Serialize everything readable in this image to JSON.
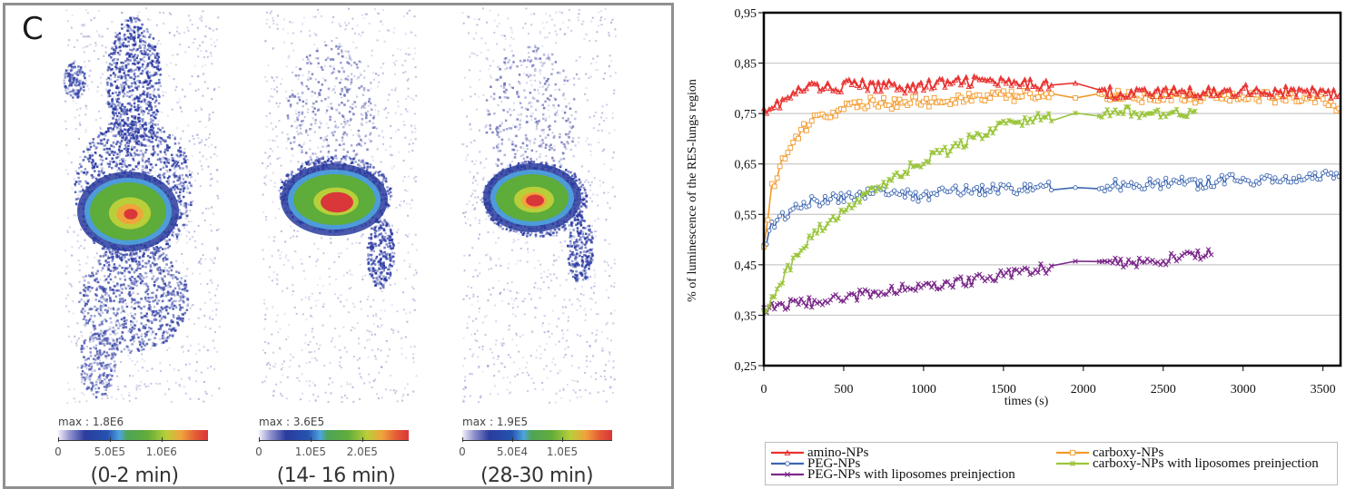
{
  "imaging": {
    "panel_letter": "C",
    "panels": [
      {
        "max_label": "max : 1.8E6",
        "scale_ticks": [
          "0",
          "5.0E5",
          "1.0E6"
        ],
        "time_label": "(0-2 min)",
        "max_value": 1800000,
        "tick_values": [
          0,
          500000,
          1000000
        ],
        "scale_max": 1450000
      },
      {
        "max_label": "max : 3.6E5",
        "scale_ticks": [
          "0",
          "1.0E5",
          "2.0E5"
        ],
        "time_label": "(14- 16 min)",
        "max_value": 360000,
        "tick_values": [
          0,
          100000,
          200000
        ],
        "scale_max": 290000
      },
      {
        "max_label": "max : 1.9E5",
        "scale_ticks": [
          "0",
          "5.0E4",
          "1.0E5"
        ],
        "time_label": "(28-30 min)",
        "max_value": 190000,
        "tick_values": [
          0,
          50000,
          100000
        ],
        "scale_max": 150000
      }
    ],
    "colormap": [
      "#f2f0fb",
      "#2a3c9d",
      "#4fa4df",
      "#62ad3a",
      "#b8cf3a",
      "#f0a43c",
      "#d9373a"
    ]
  },
  "chart_data": {
    "type": "line",
    "title": "",
    "xlabel": "times (s)",
    "ylabel": "% of luminescence of the RES-lungs region",
    "xlim": [
      0,
      3610
    ],
    "ylim": [
      0.25,
      0.95
    ],
    "x_ticks": [
      0,
      500,
      1000,
      1500,
      2000,
      2500,
      3000,
      3500
    ],
    "x_tick_labels": [
      "0",
      "500",
      "1000",
      "1500",
      "2000",
      "2500",
      "3000",
      "3500"
    ],
    "y_ticks": [
      0.25,
      0.35,
      0.45,
      0.55,
      0.65,
      0.75,
      0.85,
      0.95
    ],
    "y_tick_labels": [
      "0,25",
      "0,35",
      "0,45",
      "0,55",
      "0,65",
      "0,75",
      "0,85",
      "0,95"
    ],
    "grid": "horizontal",
    "legend_position": "bottom",
    "series": [
      {
        "name": "amino-NPs",
        "color": "#e8312f",
        "marker": "triangle",
        "x": [
          0,
          100,
          200,
          300,
          400,
          500,
          600,
          700,
          800,
          900,
          1000,
          1100,
          1200,
          1300,
          1400,
          1500,
          1600,
          1700,
          1800,
          1950,
          2100,
          2200,
          2300,
          2400,
          2500,
          2600,
          2700,
          2800,
          2900,
          3000,
          3100,
          3200,
          3300,
          3400,
          3500,
          3600
        ],
        "y": [
          0.76,
          0.77,
          0.79,
          0.805,
          0.8,
          0.805,
          0.81,
          0.8,
          0.81,
          0.8,
          0.805,
          0.81,
          0.81,
          0.815,
          0.815,
          0.81,
          0.805,
          0.81,
          0.81,
          0.8,
          0.8,
          0.79,
          0.79,
          0.795,
          0.79,
          0.795,
          0.79,
          0.795,
          0.79,
          0.8,
          0.795,
          0.79,
          0.795,
          0.79,
          0.795,
          0.785
        ]
      },
      {
        "name": "carboxy-NPs",
        "color": "#f39a2d",
        "marker": "square",
        "x": [
          0,
          25,
          50,
          100,
          150,
          200,
          250,
          300,
          350,
          400,
          500,
          600,
          700,
          800,
          900,
          1000,
          1100,
          1200,
          1300,
          1400,
          1500,
          1600,
          1700,
          1800,
          1950,
          2100,
          2200,
          2300,
          2400,
          2500,
          2600,
          2700,
          2800,
          2900,
          3000,
          3100,
          3200,
          3300,
          3400,
          3500,
          3600
        ],
        "y": [
          0.485,
          0.55,
          0.6,
          0.64,
          0.675,
          0.7,
          0.72,
          0.735,
          0.745,
          0.75,
          0.76,
          0.765,
          0.775,
          0.77,
          0.775,
          0.77,
          0.775,
          0.78,
          0.78,
          0.78,
          0.785,
          0.785,
          0.785,
          0.79,
          0.775,
          0.78,
          0.785,
          0.785,
          0.78,
          0.785,
          0.78,
          0.78,
          0.785,
          0.78,
          0.785,
          0.785,
          0.78,
          0.78,
          0.78,
          0.78,
          0.76
        ]
      },
      {
        "name": "PEG-NPs",
        "color": "#3c66b0",
        "marker": "circle",
        "x": [
          0,
          50,
          100,
          150,
          200,
          300,
          400,
          500,
          600,
          700,
          800,
          900,
          1000,
          1100,
          1200,
          1300,
          1400,
          1500,
          1600,
          1700,
          1800,
          1950,
          2100,
          2200,
          2300,
          2400,
          2500,
          2600,
          2700,
          2800,
          2900,
          3000,
          3100,
          3200,
          3300,
          3400,
          3500,
          3600
        ],
        "y": [
          0.49,
          0.525,
          0.54,
          0.55,
          0.56,
          0.575,
          0.58,
          0.585,
          0.59,
          0.595,
          0.595,
          0.59,
          0.585,
          0.595,
          0.6,
          0.595,
          0.6,
          0.6,
          0.6,
          0.605,
          0.605,
          0.595,
          0.605,
          0.61,
          0.605,
          0.61,
          0.61,
          0.615,
          0.61,
          0.615,
          0.62,
          0.615,
          0.62,
          0.625,
          0.615,
          0.625,
          0.625,
          0.625
        ]
      },
      {
        "name": "PEG-NPs with liposomes preinjection",
        "color": "#7b2a8a",
        "marker": "x",
        "x": [
          0,
          100,
          200,
          300,
          400,
          500,
          600,
          700,
          800,
          900,
          1000,
          1100,
          1200,
          1300,
          1400,
          1500,
          1600,
          1700,
          1800,
          1950,
          2100,
          2200,
          2300,
          2400,
          2500,
          2600,
          2700,
          2800
        ],
        "y": [
          0.365,
          0.37,
          0.375,
          0.375,
          0.38,
          0.385,
          0.39,
          0.395,
          0.4,
          0.405,
          0.41,
          0.41,
          0.415,
          0.42,
          0.425,
          0.43,
          0.435,
          0.44,
          0.445,
          0.45,
          0.45,
          0.455,
          0.455,
          0.46,
          0.46,
          0.465,
          0.47,
          0.47
        ]
      },
      {
        "name": "carboxy-NPs with liposomes preinjection",
        "color": "#9bc53d",
        "marker": "asterisk",
        "x": [
          0,
          50,
          100,
          150,
          200,
          250,
          300,
          400,
          500,
          600,
          700,
          800,
          900,
          1000,
          1100,
          1200,
          1300,
          1400,
          1500,
          1600,
          1700,
          1800,
          1950,
          2100,
          2200,
          2300,
          2400,
          2500,
          2600,
          2700
        ],
        "y": [
          0.36,
          0.385,
          0.41,
          0.44,
          0.47,
          0.49,
          0.51,
          0.535,
          0.56,
          0.58,
          0.6,
          0.62,
          0.64,
          0.655,
          0.67,
          0.685,
          0.7,
          0.71,
          0.725,
          0.735,
          0.74,
          0.745,
          0.745,
          0.75,
          0.75,
          0.755,
          0.745,
          0.755,
          0.75,
          0.755
        ]
      }
    ]
  },
  "legend": {
    "items": [
      {
        "label": "amino-NPs",
        "series_index": 0
      },
      {
        "label": "PEG-NPs",
        "series_index": 2
      },
      {
        "label": "PEG-NPs with liposomes preinjection",
        "series_index": 3
      },
      {
        "label": "carboxy-NPs",
        "series_index": 1
      },
      {
        "label": "carboxy-NPs with liposomes preinjection",
        "series_index": 4
      }
    ]
  }
}
